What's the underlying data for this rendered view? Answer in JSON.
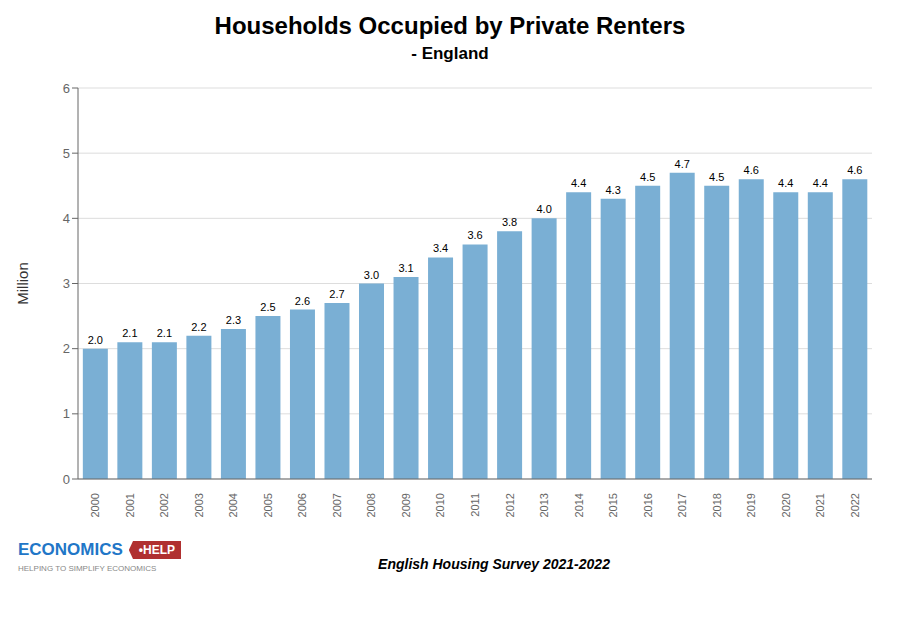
{
  "chart_data": {
    "type": "bar",
    "title": "Households Occupied by Private Renters",
    "subtitle": "- England",
    "y_label": "Million",
    "categories": [
      "2000",
      "2001",
      "2002",
      "2003",
      "2004",
      "2005",
      "2006",
      "2007",
      "2008",
      "2009",
      "2010",
      "2011",
      "2012",
      "2013",
      "2014",
      "2015",
      "2016",
      "2017",
      "2018",
      "2019",
      "2020",
      "2021",
      "2022"
    ],
    "values": [
      2.0,
      2.1,
      2.1,
      2.2,
      2.3,
      2.5,
      2.6,
      2.7,
      3.0,
      3.1,
      3.4,
      3.6,
      3.8,
      4.0,
      4.4,
      4.3,
      4.5,
      4.7,
      4.5,
      4.6,
      4.4,
      4.4,
      4.6
    ],
    "value_labels": [
      "2.0",
      "2.1",
      "2.1",
      "2.2",
      "2.3",
      "2.5",
      "2.6",
      "2.7",
      "3.0",
      "3.1",
      "3.4",
      "3.6",
      "3.8",
      "4.0",
      "4.4",
      "4.3",
      "4.5",
      "4.7",
      "4.5",
      "4.6",
      "4.4",
      "4.4",
      "4.6"
    ],
    "data_labels": true,
    "color": "#7aafd4",
    "ylim": [
      0,
      6
    ],
    "yticks": [
      0,
      1,
      2,
      3,
      4,
      5,
      6
    ],
    "grid": true,
    "annotations": [
      "English Housing Survey 2021-2022",
      "ECONOMICS",
      "•HELP",
      "HELPING TO SIMPLIFY ECONOMICS"
    ]
  }
}
